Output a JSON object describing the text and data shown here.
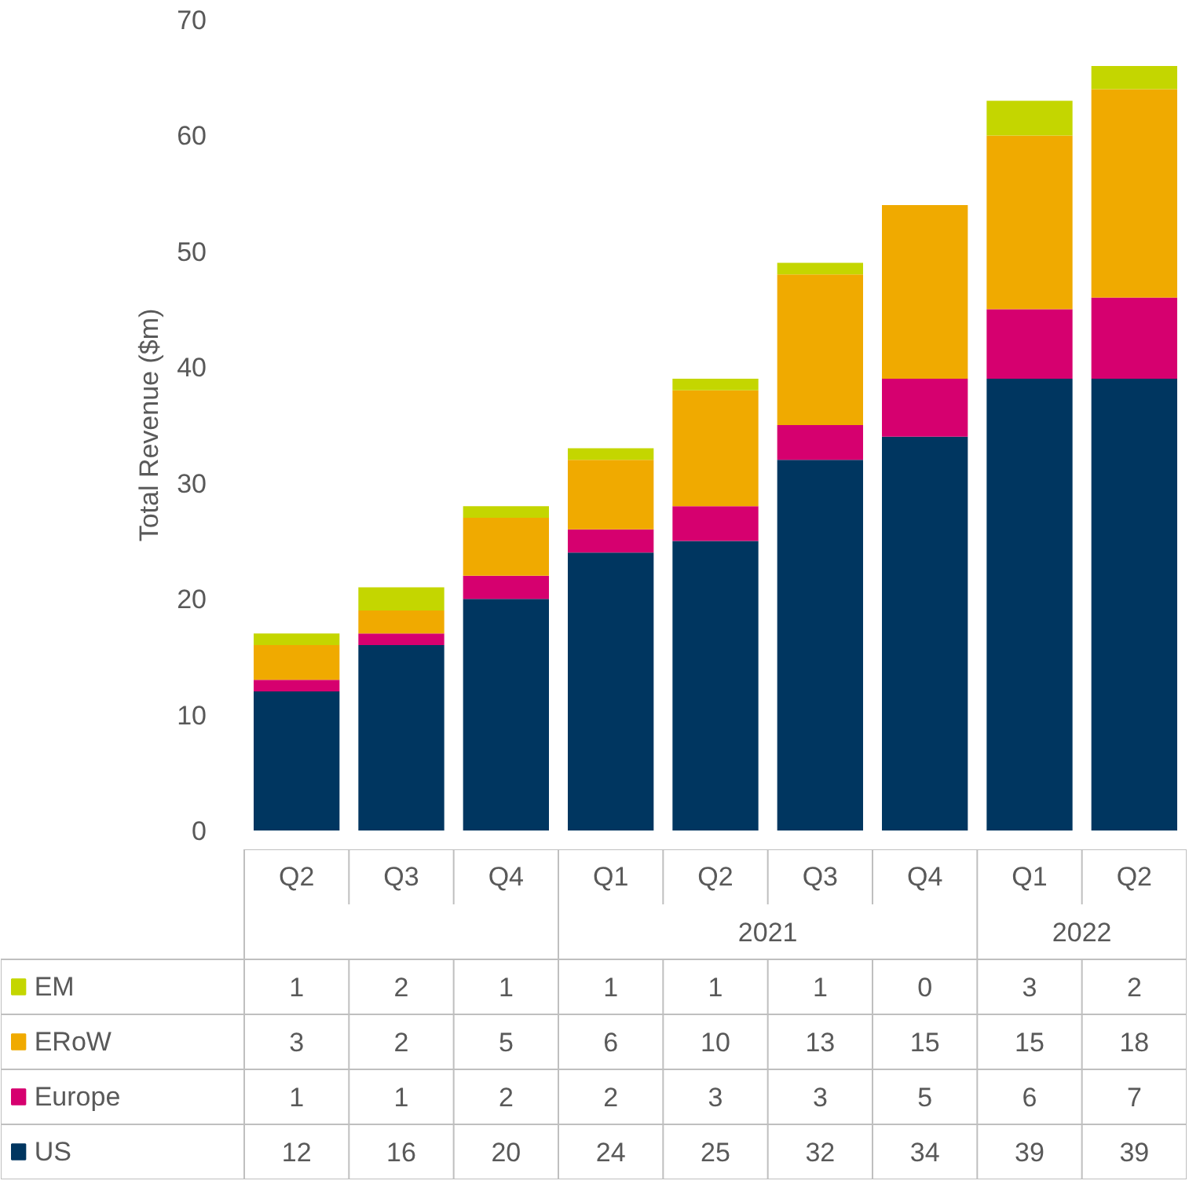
{
  "chart_data": {
    "type": "bar",
    "stacked": true,
    "ylabel": "Total Revenue ($m)",
    "categories": [
      "Q2",
      "Q3",
      "Q4",
      "Q1",
      "Q2",
      "Q3",
      "Q4",
      "Q1",
      "Q2"
    ],
    "series": [
      {
        "name": "US",
        "color": "#003660",
        "values": [
          12,
          16,
          20,
          24,
          25,
          32,
          34,
          39,
          39
        ]
      },
      {
        "name": "Europe",
        "color": "#d6006f",
        "values": [
          1,
          1,
          2,
          2,
          3,
          3,
          5,
          6,
          7
        ]
      },
      {
        "name": "ERoW",
        "color": "#f0aa00",
        "values": [
          3,
          2,
          5,
          6,
          10,
          13,
          15,
          15,
          18
        ]
      },
      {
        "name": "EM",
        "color": "#c4d600",
        "values": [
          1,
          2,
          1,
          1,
          1,
          1,
          0,
          3,
          2
        ]
      }
    ],
    "ylim": [
      0,
      70
    ],
    "yticks": [
      0,
      10,
      20,
      30,
      40,
      50,
      60,
      70
    ],
    "grid": false,
    "legend": "bottom",
    "data_labels": true,
    "annotations": [
      "2021",
      "2022"
    ]
  }
}
